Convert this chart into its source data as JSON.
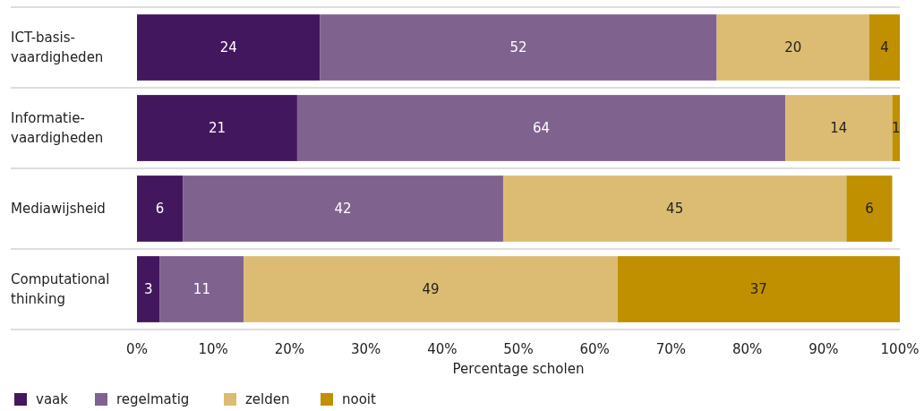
{
  "chart_data": {
    "type": "bar",
    "orientation": "horizontal",
    "stacked": true,
    "xlabel": "Percentage scholen",
    "categories": [
      "ICT-basis-\nvaardigheden",
      "Informatie-\nvaardigheden",
      "Mediawijsheid",
      "Computational\nthinking"
    ],
    "series": [
      {
        "name": "vaak",
        "color": "#43175e",
        "values": [
          24,
          21,
          6,
          3
        ]
      },
      {
        "name": "regelmatig",
        "color": "#80628f",
        "values": [
          52,
          64,
          42,
          11
        ]
      },
      {
        "name": "zelden",
        "color": "#dcbc72",
        "values": [
          20,
          14,
          45,
          49
        ]
      },
      {
        "name": "nooit",
        "color": "#c09000",
        "values": [
          4,
          1,
          6,
          37
        ]
      }
    ],
    "xlim": [
      0,
      100
    ],
    "xticks": [
      {
        "value": 0,
        "label": "0%"
      },
      {
        "value": 10,
        "label": "10%"
      },
      {
        "value": 20,
        "label": "20%"
      },
      {
        "value": 30,
        "label": "30%"
      },
      {
        "value": 40,
        "label": "40%"
      },
      {
        "value": 50,
        "label": "50%"
      },
      {
        "value": 60,
        "label": "60%"
      },
      {
        "value": 70,
        "label": "70%"
      },
      {
        "value": 80,
        "label": "80%"
      },
      {
        "value": 90,
        "label": "90%"
      },
      {
        "value": 100,
        "label": "100%"
      }
    ],
    "data_labels": true,
    "legend": "bottom",
    "grid": false
  }
}
